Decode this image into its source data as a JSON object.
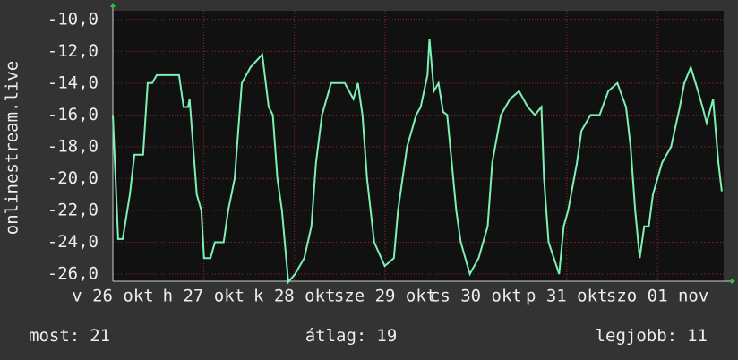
{
  "chart_data": {
    "type": "line",
    "y_label": "onlinestream.live",
    "x": [
      0,
      1.4,
      2.6,
      4.5,
      5.7,
      8,
      9.2,
      10.4,
      11.6,
      17.5,
      18.7,
      19.9,
      20.3,
      22.2,
      23.4,
      24.1,
      25.8,
      27,
      29.3,
      30.5,
      32.2,
      34.1,
      36.4,
      39.5,
      41.2,
      42.3,
      43.5,
      44.7,
      46.4,
      48.2,
      50.6,
      52.5,
      53.7,
      55.3,
      57.7,
      61.3,
      63.6,
      64.8,
      66,
      67.2,
      69.1,
      71.9,
      74.3,
      75.4,
      77.8,
      80.2,
      81.4,
      83.2,
      83.7,
      84.9,
      86.1,
      87.3,
      88.4,
      89.6,
      90.8,
      92,
      94.4,
      96.7,
      99.1,
      100.3,
      102.6,
      105,
      107.4,
      109.7,
      111.6,
      113.3,
      114,
      115.2,
      118,
      119.2,
      120.4,
      122.7,
      123.9,
      126.3,
      128.7,
      131,
      133.4,
      135.7,
      136.9,
      138.1,
      139.3,
      140.5,
      141.7,
      142.8,
      145.2,
      147.6,
      149.9,
      151.1,
      152.8,
      154.7,
      155.9,
      157,
      158.7,
      160.1,
      161
    ],
    "series": [
      {
        "color": "#7df0b4",
        "values": [
          -16,
          -23.8,
          -23.8,
          -21,
          -18.5,
          -18.5,
          -14,
          -14,
          -13.5,
          -13.5,
          -15.5,
          -15.5,
          -15,
          -21,
          -22,
          -25,
          -25,
          -24,
          -24,
          -22,
          -20,
          -14,
          -13,
          -12.2,
          -15.5,
          -16,
          -20,
          -22,
          -26.5,
          -26,
          -25,
          -23,
          -19,
          -16,
          -14,
          -14,
          -15,
          -14,
          -16,
          -20,
          -24,
          -25.5,
          -25,
          -22,
          -18,
          -16,
          -15.5,
          -13.5,
          -11.2,
          -14.5,
          -14,
          -15.8,
          -16,
          -19,
          -22,
          -24,
          -26,
          -25,
          -23,
          -19,
          -16,
          -15,
          -14.5,
          -15.5,
          -16,
          -15.5,
          -20,
          -24,
          -26,
          -23,
          -22,
          -19,
          -17,
          -16,
          -16,
          -14.5,
          -14,
          -15.5,
          -18,
          -22,
          -25,
          -23,
          -23,
          -21,
          -19,
          -18,
          -15.5,
          -14,
          -13,
          -14.5,
          -15.5,
          -16.5,
          -15,
          -19,
          -20.8
        ]
      }
    ],
    "xlim": [
      0,
      161.5
    ],
    "xticks": [
      {
        "value": 0,
        "label": "v 26 okt"
      },
      {
        "value": 24,
        "label": "h 27 okt"
      },
      {
        "value": 48,
        "label": "k 28 okt"
      },
      {
        "value": 72,
        "label": "sze 29 okt"
      },
      {
        "value": 96,
        "label": "cs 30 okt"
      },
      {
        "value": 120,
        "label": "p 31 okt"
      },
      {
        "value": 144,
        "label": "szo 01 nov"
      }
    ],
    "ylim": [
      -26.45,
      -9.45
    ],
    "yticks": [
      {
        "value": -10,
        "label": "-10,0"
      },
      {
        "value": -12,
        "label": "-12,0"
      },
      {
        "value": -14,
        "label": "-14,0"
      },
      {
        "value": -16,
        "label": "-16,0"
      },
      {
        "value": -18,
        "label": "-18,0"
      },
      {
        "value": -20,
        "label": "-20,0"
      },
      {
        "value": -22,
        "label": "-22,0"
      },
      {
        "value": -24,
        "label": "-24,0"
      },
      {
        "value": -26,
        "label": "-26,0"
      }
    ],
    "grid": true,
    "footer": [
      {
        "label": "most:",
        "value": 21
      },
      {
        "label": "átlag:",
        "value": 19
      },
      {
        "label": "legjobb:",
        "value": 11
      }
    ]
  }
}
